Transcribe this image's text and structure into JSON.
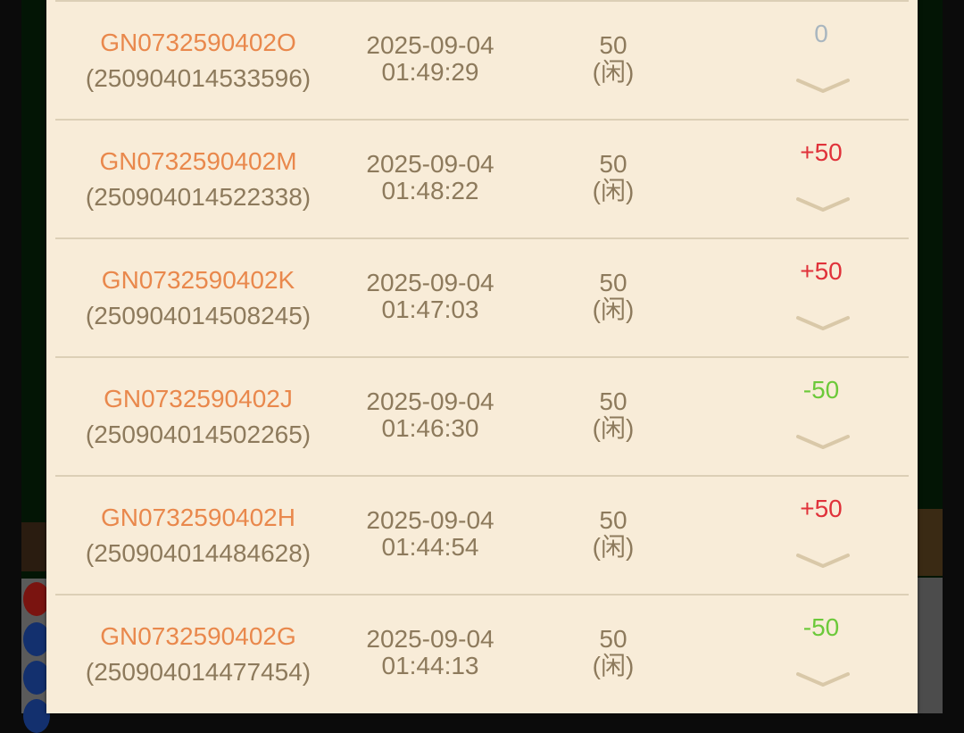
{
  "colors": {
    "id": "#e9884c",
    "text": "#8d7a5c",
    "positive": "#e0323a",
    "negative": "#6cc93a",
    "zero": "#a9b6bf"
  },
  "records": [
    {
      "game_id": "GN0732590402O",
      "order_no": "(250904014533596)",
      "date": "2025-09-04",
      "time": "01:49:29",
      "bet": "50",
      "side": "(闲)",
      "result": "0",
      "result_type": "zero"
    },
    {
      "game_id": "GN0732590402M",
      "order_no": "(250904014522338)",
      "date": "2025-09-04",
      "time": "01:48:22",
      "bet": "50",
      "side": "(闲)",
      "result": "+50",
      "result_type": "positive"
    },
    {
      "game_id": "GN0732590402K",
      "order_no": "(250904014508245)",
      "date": "2025-09-04",
      "time": "01:47:03",
      "bet": "50",
      "side": "(闲)",
      "result": "+50",
      "result_type": "positive"
    },
    {
      "game_id": "GN0732590402J",
      "order_no": "(250904014502265)",
      "date": "2025-09-04",
      "time": "01:46:30",
      "bet": "50",
      "side": "(闲)",
      "result": "-50",
      "result_type": "negative"
    },
    {
      "game_id": "GN0732590402H",
      "order_no": "(250904014484628)",
      "date": "2025-09-04",
      "time": "01:44:54",
      "bet": "50",
      "side": "(闲)",
      "result": "+50",
      "result_type": "positive"
    },
    {
      "game_id": "GN0732590402G",
      "order_no": "(250904014477454)",
      "date": "2025-09-04",
      "time": "01:44:13",
      "bet": "50",
      "side": "(闲)",
      "result": "-50",
      "result_type": "negative"
    }
  ]
}
